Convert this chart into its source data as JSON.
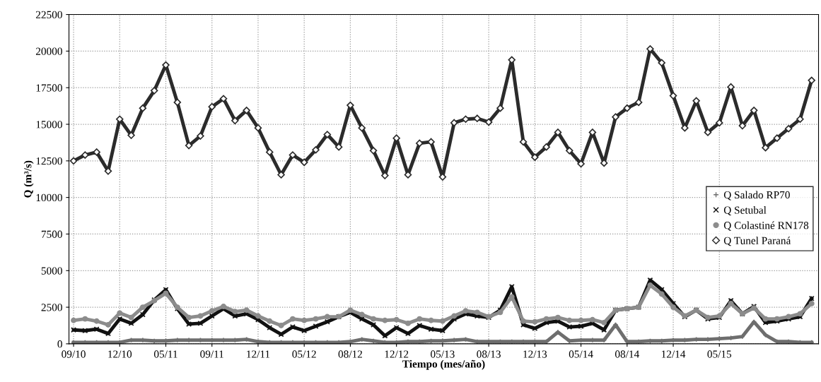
{
  "chart_data": {
    "type": "line",
    "xlabel": "Tiempo (mes/año)",
    "ylabel": "Q (m³/s)",
    "categories": [
      "09/10",
      null,
      null,
      null,
      "12/10",
      null,
      null,
      null,
      "05/11",
      null,
      null,
      null,
      "09/11",
      null,
      null,
      null,
      "12/11",
      null,
      null,
      null,
      "05/12",
      null,
      null,
      null,
      "08/12",
      null,
      null,
      null,
      "12/12",
      null,
      null,
      null,
      "05/13",
      null,
      null,
      null,
      "08/13",
      null,
      null,
      null,
      "12/13",
      null,
      null,
      null,
      "05/14",
      null,
      null,
      null,
      "08/14",
      null,
      null,
      null,
      "12/14",
      null,
      null,
      null,
      "05/15",
      null,
      null,
      null,
      null,
      null,
      null,
      null,
      null
    ],
    "ylim": [
      0,
      22500
    ],
    "yticks": [
      0,
      2500,
      5000,
      7500,
      10000,
      12500,
      15000,
      17500,
      20000,
      22500
    ],
    "grid": true,
    "legend": "center right",
    "series": [
      {
        "name": "Q Salado RP70",
        "color": "#6e6e6e",
        "marker": "plus",
        "values": [
          100,
          100,
          100,
          100,
          100,
          250,
          250,
          200,
          200,
          250,
          250,
          250,
          250,
          250,
          250,
          300,
          150,
          100,
          100,
          100,
          100,
          100,
          100,
          100,
          150,
          300,
          200,
          100,
          100,
          150,
          150,
          200,
          200,
          250,
          300,
          150,
          150,
          150,
          150,
          150,
          150,
          150,
          800,
          200,
          250,
          250,
          250,
          1300,
          150,
          150,
          200,
          200,
          250,
          250,
          300,
          300,
          350,
          400,
          500,
          1500,
          600,
          150,
          150,
          100,
          100
        ]
      },
      {
        "name": "Q Setubal",
        "color": "#111111",
        "marker": "cross",
        "values": [
          950,
          900,
          1000,
          700,
          1700,
          1400,
          2000,
          3000,
          3700,
          2400,
          1350,
          1400,
          1900,
          2400,
          1900,
          2050,
          1650,
          1100,
          650,
          1150,
          900,
          1200,
          1500,
          1850,
          2150,
          1700,
          1300,
          550,
          1100,
          700,
          1250,
          1000,
          900,
          1700,
          2050,
          1900,
          1800,
          2300,
          3900,
          1300,
          1050,
          1450,
          1550,
          1150,
          1200,
          1400,
          950,
          2300,
          2400,
          2500,
          4350,
          3700,
          2750,
          1850,
          2300,
          1700,
          1800,
          2950,
          2050,
          2550,
          1450,
          1550,
          1700,
          1850,
          3100
        ]
      },
      {
        "name": "Q Colastiné RN178",
        "color": "#8c8c8c",
        "marker": "circle",
        "values": [
          1600,
          1700,
          1550,
          1300,
          2100,
          1800,
          2500,
          2950,
          3450,
          2500,
          1800,
          1900,
          2250,
          2550,
          2200,
          2300,
          1900,
          1550,
          1250,
          1700,
          1600,
          1700,
          1850,
          1850,
          2300,
          2000,
          1700,
          1600,
          1650,
          1400,
          1700,
          1600,
          1550,
          1900,
          2250,
          2150,
          1850,
          2150,
          3200,
          1550,
          1500,
          1700,
          1800,
          1600,
          1600,
          1650,
          1450,
          2300,
          2400,
          2500,
          4000,
          3400,
          2500,
          1900,
          2300,
          1800,
          1900,
          2750,
          2050,
          2450,
          1700,
          1700,
          1850,
          2050,
          2750
        ]
      },
      {
        "name": "Q Tunel Paraná",
        "color": "#2b2b2b",
        "marker": "diamond",
        "values": [
          12500,
          12900,
          13100,
          11800,
          15350,
          14250,
          16100,
          17300,
          19050,
          16500,
          13550,
          14200,
          16200,
          16750,
          15250,
          15950,
          14750,
          13100,
          11550,
          12900,
          12400,
          13250,
          14300,
          13450,
          16300,
          14750,
          13200,
          11500,
          14050,
          11550,
          13700,
          13800,
          11400,
          15100,
          15350,
          15400,
          15150,
          16100,
          19400,
          13800,
          12750,
          13450,
          14450,
          13200,
          12300,
          14450,
          12350,
          15500,
          16100,
          16500,
          20150,
          19200,
          16950,
          14750,
          16600,
          14450,
          15100,
          17550,
          14900,
          15950,
          13400,
          14050,
          14700,
          15350,
          18000
        ]
      }
    ]
  }
}
